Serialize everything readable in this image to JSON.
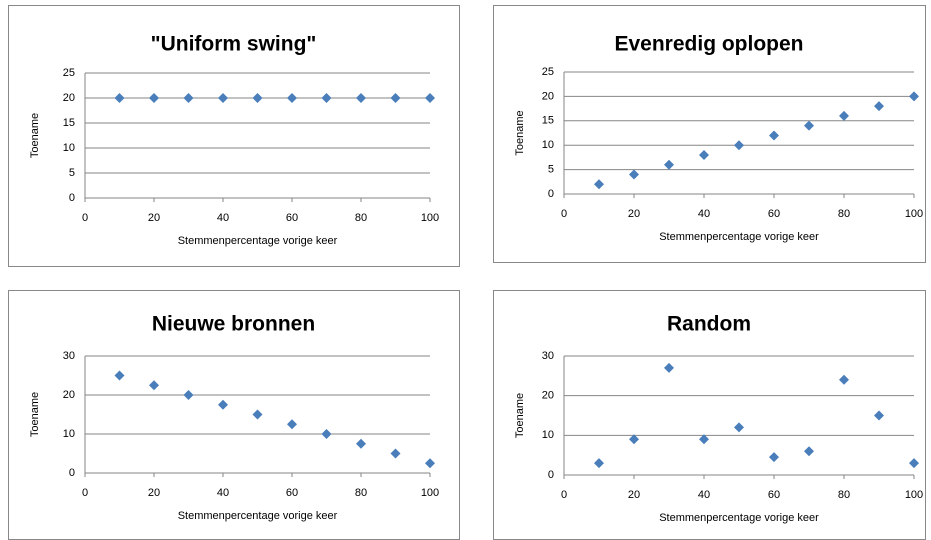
{
  "chart_data": [
    {
      "type": "scatter",
      "title": "\"Uniform swing\"",
      "x_label": "Stemmenpercentage vorige keer",
      "y_label": "Toename",
      "x": [
        10,
        20,
        30,
        40,
        50,
        60,
        70,
        80,
        90,
        100
      ],
      "values": [
        20,
        20,
        20,
        20,
        20,
        20,
        20,
        20,
        20,
        20
      ],
      "color": "#4a7ebb",
      "xlim": [
        0,
        100
      ],
      "xticks": [
        0,
        20,
        40,
        60,
        80,
        100
      ],
      "ylim": [
        0,
        25
      ],
      "yticks": [
        0,
        5,
        10,
        15,
        20,
        25
      ],
      "grid": true
    },
    {
      "type": "scatter",
      "title": "Evenredig oplopen",
      "x_label": "Stemmenpercentage vorige keer",
      "y_label": "Toename",
      "x": [
        10,
        20,
        30,
        40,
        50,
        60,
        70,
        80,
        90,
        100
      ],
      "values": [
        2,
        4,
        6,
        8,
        10,
        12,
        14,
        16,
        18,
        20
      ],
      "color": "#4a7ebb",
      "xlim": [
        0,
        100
      ],
      "xticks": [
        0,
        20,
        40,
        60,
        80,
        100
      ],
      "ylim": [
        0,
        25
      ],
      "yticks": [
        0,
        5,
        10,
        15,
        20,
        25
      ],
      "grid": true
    },
    {
      "type": "scatter",
      "title": "Nieuwe bronnen",
      "x_label": "Stemmenpercentage vorige keer",
      "y_label": "Toename",
      "x": [
        10,
        20,
        30,
        40,
        50,
        60,
        70,
        80,
        90,
        100
      ],
      "values": [
        25,
        22.5,
        20,
        17.5,
        15,
        12.5,
        10,
        7.5,
        5,
        2.5
      ],
      "color": "#4a7ebb",
      "xlim": [
        0,
        100
      ],
      "xticks": [
        0,
        20,
        40,
        60,
        80,
        100
      ],
      "ylim": [
        0,
        30
      ],
      "yticks": [
        0,
        10,
        20,
        30
      ],
      "grid": true
    },
    {
      "type": "scatter",
      "title": "Random",
      "x_label": "Stemmenpercentage vorige keer",
      "y_label": "Toename",
      "x": [
        10,
        20,
        30,
        40,
        50,
        60,
        70,
        80,
        90,
        100
      ],
      "values": [
        3,
        9,
        27,
        9,
        12,
        4.5,
        6,
        24,
        15,
        3
      ],
      "color": "#4a7ebb",
      "xlim": [
        0,
        100
      ],
      "xticks": [
        0,
        20,
        40,
        60,
        80,
        100
      ],
      "ylim": [
        0,
        30
      ],
      "yticks": [
        0,
        10,
        20,
        30
      ],
      "grid": true
    }
  ]
}
